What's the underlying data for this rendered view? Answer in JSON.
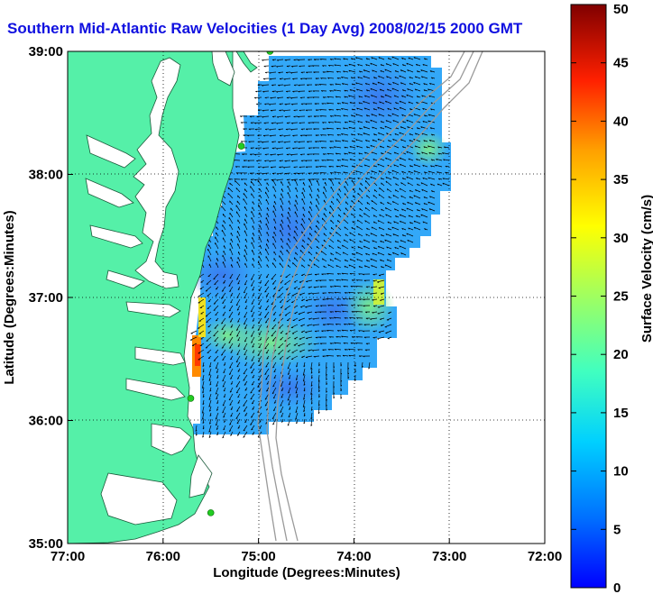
{
  "title": "Southern Mid-Atlantic Raw Velocities (1 Day Avg) 2008/02/15 2000 GMT",
  "x_axis": {
    "label": "Longitude (Degrees:Minutes)",
    "ticks": [
      {
        "label": "77:00",
        "value": -77
      },
      {
        "label": "76:00",
        "value": -76
      },
      {
        "label": "75:00",
        "value": -75
      },
      {
        "label": "74:00",
        "value": -74
      },
      {
        "label": "73:00",
        "value": -73
      },
      {
        "label": "72:00",
        "value": -72
      }
    ]
  },
  "y_axis": {
    "label": "Latitude (Degrees:Minutes)",
    "ticks": [
      {
        "label": "39:00",
        "value": 39
      },
      {
        "label": "38:00",
        "value": 38
      },
      {
        "label": "37:00",
        "value": 37
      },
      {
        "label": "36:00",
        "value": 36
      },
      {
        "label": "35:00",
        "value": 35
      }
    ]
  },
  "colorbar": {
    "label": "Surface Velocity (cm/s)",
    "min": 0,
    "max": 50,
    "ticks": [
      "0",
      "5",
      "10",
      "15",
      "20",
      "25",
      "30",
      "35",
      "40",
      "45",
      "50"
    ],
    "colormap": "jet"
  },
  "colors": {
    "land": "#55f0a8",
    "title": "#1010e0",
    "vector": "#000000",
    "station": "#22cc22",
    "bathymetry": "#999999"
  },
  "map_extent": {
    "lon_min": -77,
    "lon_max": -72,
    "lat_min": 35,
    "lat_max": 39
  },
  "grid": true,
  "stations": [
    {
      "lon": -74.88,
      "lat": 39.0
    },
    {
      "lon": -75.18,
      "lat": 38.23
    },
    {
      "lon": -75.71,
      "lat": 36.18
    },
    {
      "lon": -75.5,
      "lat": 35.25
    }
  ]
}
